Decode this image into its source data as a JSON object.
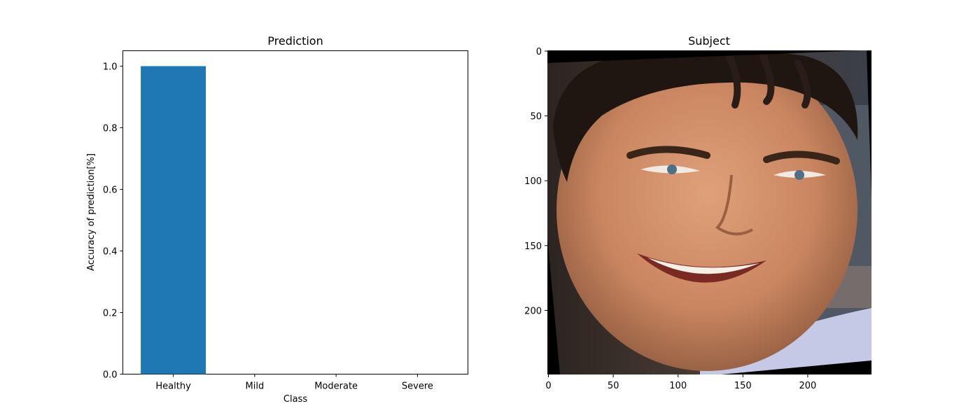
{
  "chart_data": [
    {
      "type": "bar",
      "title": "Prediction",
      "xlabel": "Class",
      "ylabel": "Accuracy of prediction[%]",
      "categories": [
        "Healthy",
        "Mild",
        "Moderate",
        "Severe"
      ],
      "values": [
        1.0,
        0.0,
        0.0,
        0.0
      ],
      "ylim": [
        0,
        1.05
      ],
      "yticks": [
        0.0,
        0.2,
        0.4,
        0.6,
        0.8,
        1.0
      ],
      "ytick_labels": [
        "0.0",
        "0.2",
        "0.4",
        "0.6",
        "0.8",
        "1.0"
      ],
      "bar_color": "#1f77b4",
      "grid": false
    },
    {
      "type": "image",
      "title": "Subject",
      "xlim": [
        0,
        250
      ],
      "ylim": [
        250,
        0
      ],
      "xticks": [
        0,
        50,
        100,
        150,
        200
      ],
      "xtick_labels": [
        "0",
        "50",
        "100",
        "150",
        "200"
      ],
      "yticks": [
        0,
        50,
        100,
        150,
        200
      ],
      "ytick_labels": [
        "0",
        "50",
        "100",
        "150",
        "200"
      ],
      "image_content": "face-photo-icon"
    }
  ]
}
